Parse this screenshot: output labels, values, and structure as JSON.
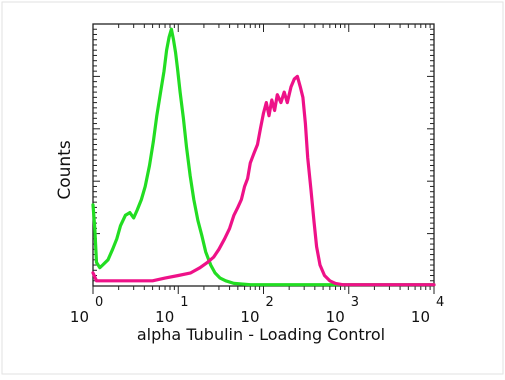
{
  "chart_data": {
    "type": "line",
    "subtype": "flow-cytometry-histogram",
    "xlabel": "alpha Tubulin - Loading Control",
    "ylabel": "Counts",
    "xscale": "log",
    "xlim": [
      1,
      10000
    ],
    "ylim": [
      0,
      1
    ],
    "xticks": [
      {
        "base": "10",
        "exp": "0"
      },
      {
        "base": "10",
        "exp": "1"
      },
      {
        "base": "10",
        "exp": "2"
      },
      {
        "base": "10",
        "exp": "3"
      },
      {
        "base": "10",
        "exp": "4"
      }
    ],
    "legend": "none",
    "grid": false,
    "series": [
      {
        "color": "#22dd22",
        "x": [
          1.0,
          1.05,
          1.1,
          1.2,
          1.3,
          1.5,
          1.7,
          1.9,
          2.1,
          2.4,
          2.7,
          3.0,
          3.3,
          3.7,
          4.1,
          4.6,
          5.1,
          5.6,
          6.2,
          6.8,
          7.3,
          7.8,
          8.3,
          8.8,
          9.3,
          9.8,
          10.5,
          11.5,
          12.5,
          13.8,
          15.2,
          17,
          19,
          21,
          24,
          27,
          31,
          36,
          45,
          70,
          150,
          400,
          1000,
          3000,
          10000
        ],
        "values": [
          0.31,
          0.22,
          0.09,
          0.07,
          0.08,
          0.1,
          0.14,
          0.18,
          0.23,
          0.27,
          0.28,
          0.26,
          0.29,
          0.33,
          0.38,
          0.46,
          0.55,
          0.65,
          0.74,
          0.82,
          0.9,
          0.95,
          0.98,
          0.94,
          0.89,
          0.83,
          0.74,
          0.64,
          0.53,
          0.42,
          0.33,
          0.25,
          0.19,
          0.13,
          0.08,
          0.05,
          0.03,
          0.02,
          0.01,
          0.005,
          0.005,
          0.005,
          0.005,
          0.005,
          0.005
        ]
      },
      {
        "color": "#ee1188",
        "x": [
          1.0,
          1.1,
          1.3,
          1.6,
          2,
          3,
          5,
          7,
          10,
          14,
          18,
          22,
          26,
          30,
          35,
          40,
          45,
          50,
          55,
          60,
          65,
          70,
          78,
          85,
          92,
          100,
          108,
          116,
          125,
          135,
          145,
          160,
          175,
          190,
          210,
          230,
          250,
          270,
          290,
          310,
          330,
          360,
          390,
          420,
          460,
          520,
          600,
          700,
          850,
          1100,
          1500,
          2500,
          10000
        ],
        "values": [
          0.05,
          0.02,
          0.02,
          0.02,
          0.02,
          0.02,
          0.02,
          0.03,
          0.04,
          0.05,
          0.07,
          0.09,
          0.11,
          0.14,
          0.18,
          0.22,
          0.27,
          0.3,
          0.33,
          0.38,
          0.41,
          0.47,
          0.51,
          0.54,
          0.6,
          0.66,
          0.7,
          0.65,
          0.71,
          0.67,
          0.73,
          0.7,
          0.74,
          0.7,
          0.76,
          0.79,
          0.8,
          0.76,
          0.72,
          0.62,
          0.49,
          0.37,
          0.25,
          0.15,
          0.08,
          0.04,
          0.02,
          0.01,
          0.005,
          0.005,
          0.005,
          0.005,
          0.005
        ]
      }
    ]
  }
}
